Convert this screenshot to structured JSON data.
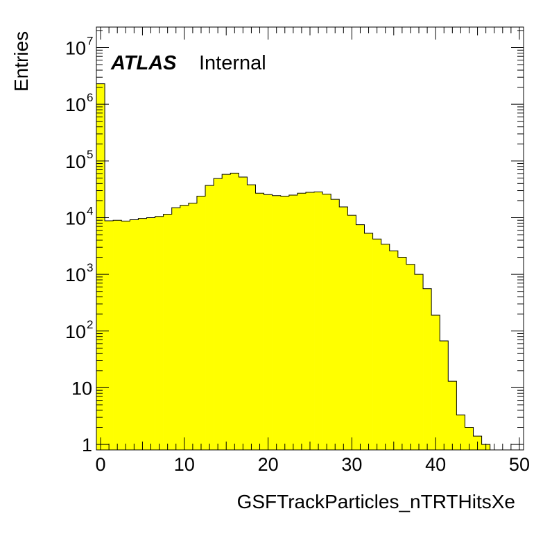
{
  "chart_data": {
    "type": "bar",
    "style": "histogram",
    "title": "",
    "xlabel": "GSFTrackParticles_nTRTHitsXe",
    "ylabel": "Entries",
    "xlim": [
      -0.5,
      50.5
    ],
    "ylim": [
      0.8,
      23000000
    ],
    "ylog": true,
    "xticks": [
      0,
      10,
      20,
      30,
      40,
      50
    ],
    "yticks": [
      {
        "value": 1,
        "base": "1",
        "exp": ""
      },
      {
        "value": 10,
        "base": "10",
        "exp": ""
      },
      {
        "value": 100,
        "base": "10",
        "exp": "2"
      },
      {
        "value": 1000,
        "base": "10",
        "exp": "3"
      },
      {
        "value": 10000,
        "base": "10",
        "exp": "4"
      },
      {
        "value": 100000,
        "base": "10",
        "exp": "5"
      },
      {
        "value": 1000000,
        "base": "10",
        "exp": "6"
      },
      {
        "value": 10000000,
        "base": "10",
        "exp": "7"
      }
    ],
    "bin_edges_start": -0.5,
    "bin_width": 1,
    "values": [
      2300000,
      8800,
      9000,
      8700,
      9200,
      9700,
      10000,
      10500,
      11500,
      15000,
      16500,
      18000,
      24000,
      37000,
      49000,
      58000,
      61000,
      52000,
      38000,
      27000,
      25500,
      24500,
      24000,
      25000,
      27000,
      28000,
      28500,
      26000,
      21000,
      15500,
      11000,
      7500,
      5300,
      4200,
      3400,
      2600,
      2000,
      1500,
      1000,
      560,
      190,
      67,
      13,
      3.3,
      2.0,
      1.4,
      1,
      0,
      0,
      0,
      0
    ],
    "fill_color": "#ffff00",
    "line_color": "#000000",
    "grid": false,
    "legend": "none",
    "annotation": {
      "bold": "ATLAS",
      "text": "Internal"
    }
  }
}
